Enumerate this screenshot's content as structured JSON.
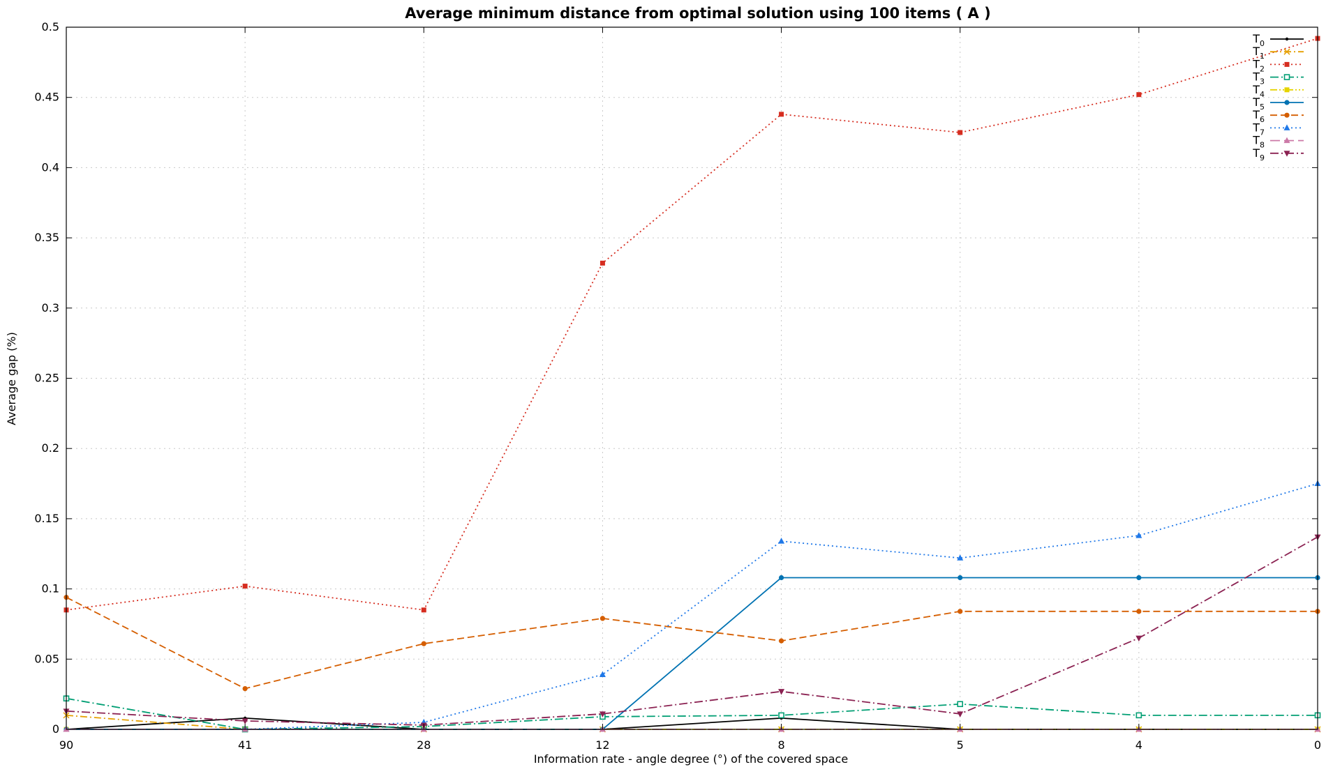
{
  "chart_data": {
    "type": "line",
    "title": "Average minimum distance from optimal solution using 100 items ( A )",
    "xlabel": "Information rate - angle degree (°)  of the covered space",
    "ylabel": "Average gap (%)",
    "categories": [
      "90",
      "41",
      "28",
      "12",
      "8",
      "5",
      "4",
      "0"
    ],
    "ylim": [
      0,
      0.5
    ],
    "yticks": [
      "0",
      "0.05",
      "0.1",
      "0.15",
      "0.2",
      "0.25",
      "0.3",
      "0.35",
      "0.4",
      "0.45",
      "0.5"
    ],
    "grid": true,
    "legend_position": "top-right",
    "series": [
      {
        "name": "T",
        "sub": "0",
        "color": "#000000",
        "dash": "",
        "marker": "dot",
        "values": [
          0,
          0.008,
          0,
          0,
          0.008,
          0,
          0,
          0
        ]
      },
      {
        "name": "T",
        "sub": "1",
        "color": "#e69f00",
        "dash": "10 4 2 4",
        "marker": "x",
        "values": [
          0.01,
          0,
          0,
          0,
          0,
          0,
          0,
          0
        ]
      },
      {
        "name": "T",
        "sub": "2",
        "color": "#d62d20",
        "dash": "2 4",
        "marker": "square",
        "values": [
          0.085,
          0.102,
          0.085,
          0.332,
          0.438,
          0.425,
          0.452,
          0.492
        ]
      },
      {
        "name": "T",
        "sub": "3",
        "color": "#009e73",
        "dash": "12 4 2 4",
        "marker": "square-open",
        "values": [
          0.022,
          0,
          0.002,
          0.009,
          0.01,
          0.018,
          0.01,
          0.01
        ]
      },
      {
        "name": "T",
        "sub": "4",
        "color": "#e6d400",
        "dash": "10 3 2 3 2 3",
        "marker": "square",
        "values": [
          0,
          0,
          0,
          0,
          0,
          0,
          0,
          0
        ]
      },
      {
        "name": "T",
        "sub": "5",
        "color": "#0072b2",
        "dash": "",
        "marker": "circle",
        "values": [
          0,
          0,
          0,
          0,
          0.108,
          0.108,
          0.108,
          0.108
        ]
      },
      {
        "name": "T",
        "sub": "6",
        "color": "#d55e00",
        "dash": "10 5",
        "marker": "circle",
        "values": [
          0.094,
          0.029,
          0.061,
          0.079,
          0.063,
          0.084,
          0.084,
          0.084
        ]
      },
      {
        "name": "T",
        "sub": "7",
        "color": "#1f78e8",
        "dash": "2 4",
        "marker": "triangle",
        "values": [
          0,
          0,
          0.005,
          0.039,
          0.134,
          0.122,
          0.138,
          0.175
        ]
      },
      {
        "name": "T",
        "sub": "8",
        "color": "#cc79a7",
        "dash": "14 6",
        "marker": "triangle",
        "values": [
          0,
          0,
          0,
          0,
          0,
          0,
          0,
          0
        ]
      },
      {
        "name": "T",
        "sub": "9",
        "color": "#8b2252",
        "dash": "12 4 2 4",
        "marker": "triangle-down",
        "values": [
          0.013,
          0.006,
          0.003,
          0.011,
          0.027,
          0.011,
          0.065,
          0.137
        ]
      }
    ]
  }
}
